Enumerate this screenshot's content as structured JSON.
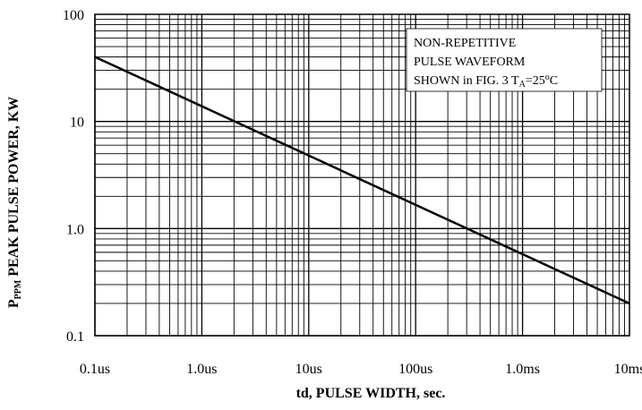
{
  "chart_data": {
    "type": "line",
    "x_scale": "log",
    "y_scale": "log",
    "xlim": [
      "0.1us",
      "10ms"
    ],
    "ylim": [
      0.1,
      100
    ],
    "grid": true,
    "x_tick_labels": [
      "0.1us",
      "1.0us",
      "10us",
      "100us",
      "1.0ms",
      "10ms"
    ],
    "y_tick_labels": [
      "100",
      "10",
      "1.0",
      "0.1"
    ],
    "xlabel": "td, PULSE WIDTH, sec.",
    "ylabel": {
      "main": "P",
      "subscript": "PPM",
      "rest": " PEAK PULSE POWER, KW"
    },
    "annotation": {
      "line1": "NON-REPETITIVE",
      "line2": "PULSE WAVEFORM",
      "line3_prefix": "SHOWN in FIG. 3 T",
      "line3_sub": "A",
      "line3_value": "=25",
      "line3_degree": "o",
      "line3_unit": "C"
    },
    "series": [
      {
        "points": [
          {
            "x": "0.1us",
            "y": 40
          },
          {
            "x": "10ms",
            "y": 0.2
          }
        ]
      }
    ]
  }
}
